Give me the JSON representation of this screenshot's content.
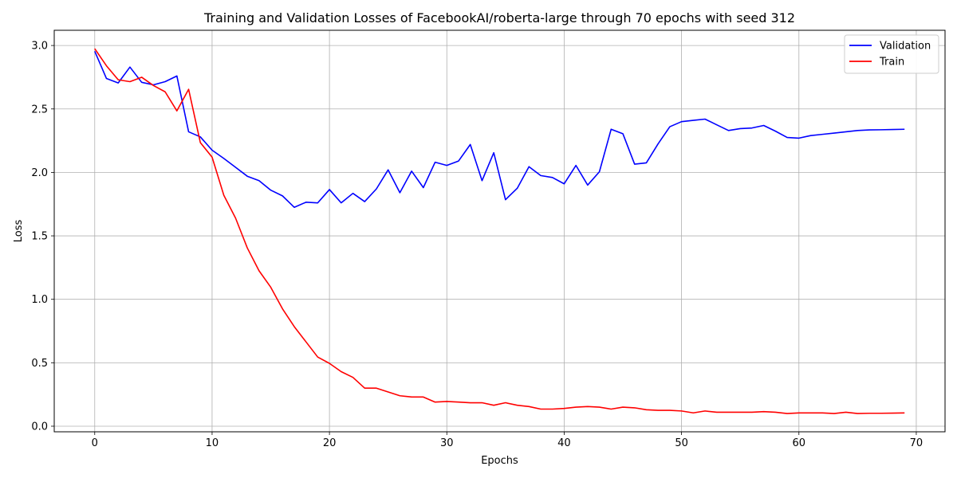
{
  "chart_data": {
    "type": "line",
    "title": "Training and Validation Losses of FacebookAI/roberta-large through 70 epochs with seed 312",
    "xlabel": "Epochs",
    "ylabel": "Loss",
    "xlim": [
      -3.45,
      72.45
    ],
    "ylim": [
      -0.044,
      3.12
    ],
    "xticks": [
      0,
      10,
      20,
      30,
      40,
      50,
      60,
      70
    ],
    "yticks": [
      0.0,
      0.5,
      1.0,
      1.5,
      2.0,
      2.5,
      3.0
    ],
    "xtick_labels": [
      "0",
      "10",
      "20",
      "30",
      "40",
      "50",
      "60",
      "70"
    ],
    "ytick_labels": [
      "0.0",
      "0.5",
      "1.0",
      "1.5",
      "2.0",
      "2.5",
      "3.0"
    ],
    "grid": true,
    "legend_position": "top-right",
    "x": [
      0,
      1,
      2,
      3,
      4,
      5,
      6,
      7,
      8,
      9,
      10,
      11,
      12,
      13,
      14,
      15,
      16,
      17,
      18,
      19,
      20,
      21,
      22,
      23,
      24,
      25,
      26,
      27,
      28,
      29,
      30,
      31,
      32,
      33,
      34,
      35,
      36,
      37,
      38,
      39,
      40,
      41,
      42,
      43,
      44,
      45,
      46,
      47,
      48,
      49,
      50,
      51,
      52,
      53,
      54,
      55,
      56,
      57,
      58,
      59,
      60,
      61,
      62,
      63,
      64,
      65,
      66,
      67,
      68,
      69
    ],
    "series": [
      {
        "name": "Validation",
        "color": "#0000ff",
        "values": [
          2.955,
          2.74,
          2.705,
          2.83,
          2.71,
          2.69,
          2.715,
          2.76,
          2.32,
          2.28,
          2.175,
          2.11,
          2.04,
          1.97,
          1.935,
          1.86,
          1.815,
          1.725,
          1.765,
          1.76,
          1.865,
          1.76,
          1.835,
          1.77,
          1.87,
          2.02,
          1.84,
          2.01,
          1.88,
          2.08,
          2.055,
          2.09,
          2.22,
          1.935,
          2.155,
          1.785,
          1.875,
          2.045,
          1.975,
          1.96,
          1.91,
          2.055,
          1.9,
          2.005,
          2.34,
          2.305,
          2.065,
          2.075,
          2.225,
          2.36,
          2.4,
          2.41,
          2.42,
          2.375,
          2.33,
          2.345,
          2.35,
          2.37,
          2.325,
          2.275,
          2.27,
          2.29,
          2.3,
          2.31,
          2.32,
          2.33,
          2.335,
          2.336,
          2.338,
          2.34
        ]
      },
      {
        "name": "Train",
        "color": "#ff0000",
        "values": [
          2.975,
          2.84,
          2.73,
          2.715,
          2.75,
          2.685,
          2.635,
          2.485,
          2.655,
          2.235,
          2.12,
          1.82,
          1.64,
          1.405,
          1.225,
          1.095,
          0.925,
          0.785,
          0.665,
          0.545,
          0.495,
          0.43,
          0.385,
          0.3,
          0.3,
          0.27,
          0.24,
          0.23,
          0.23,
          0.19,
          0.195,
          0.19,
          0.185,
          0.185,
          0.165,
          0.185,
          0.165,
          0.155,
          0.135,
          0.135,
          0.14,
          0.15,
          0.155,
          0.15,
          0.135,
          0.15,
          0.145,
          0.13,
          0.125,
          0.125,
          0.12,
          0.105,
          0.12,
          0.11,
          0.11,
          0.11,
          0.11,
          0.115,
          0.11,
          0.1,
          0.105,
          0.105,
          0.105,
          0.1,
          0.11,
          0.1,
          0.102,
          0.102,
          0.103,
          0.105
        ]
      }
    ]
  }
}
